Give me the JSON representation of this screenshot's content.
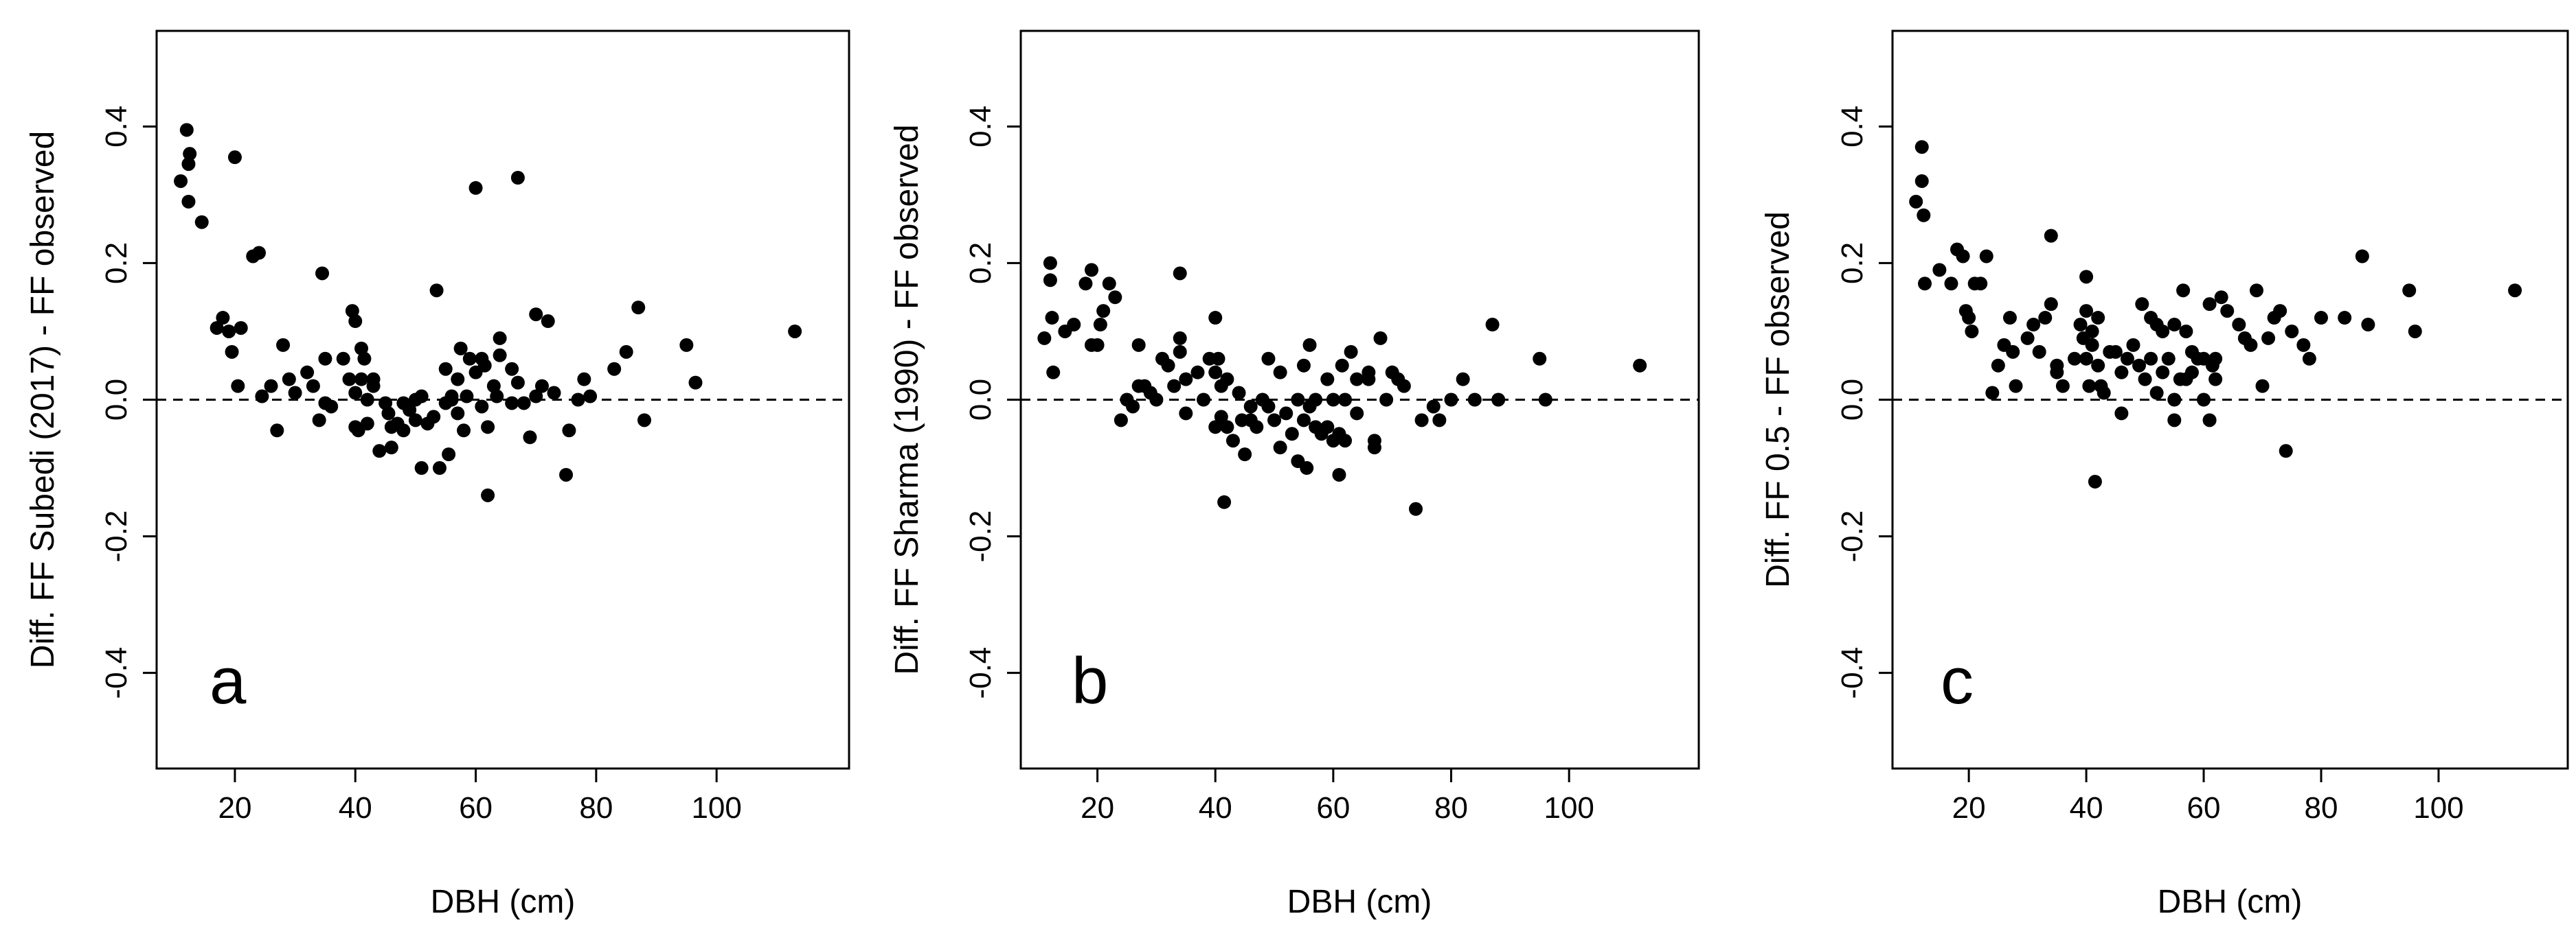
{
  "chart_data": [
    {
      "type": "scatter",
      "panel_letter": "a",
      "xlabel": "DBH (cm)",
      "ylabel": "Diff. FF Subedi (2017) - FF observed",
      "xlim": [
        7,
        122
      ],
      "ylim": [
        -0.54,
        0.54
      ],
      "x_ticks": [
        20,
        40,
        60,
        80,
        100
      ],
      "y_ticks": [
        -0.4,
        -0.2,
        0.0,
        0.2,
        0.4
      ],
      "x_tick_labels": [
        "20",
        "40",
        "60",
        "80",
        "100"
      ],
      "y_tick_labels": [
        "-0.4",
        "-0.2",
        "0.0",
        "0.2",
        "0.4"
      ],
      "reference_line_y": 0.0,
      "points": [
        [
          11,
          0.32
        ],
        [
          12,
          0.395
        ],
        [
          12.3,
          0.345
        ],
        [
          12.5,
          0.36
        ],
        [
          12.3,
          0.29
        ],
        [
          14.5,
          0.26
        ],
        [
          17,
          0.105
        ],
        [
          18,
          0.12
        ],
        [
          19,
          0.1
        ],
        [
          19.5,
          0.07
        ],
        [
          20,
          0.355
        ],
        [
          20.5,
          0.02
        ],
        [
          21,
          0.105
        ],
        [
          23,
          0.21
        ],
        [
          24,
          0.215
        ],
        [
          24.5,
          0.005
        ],
        [
          26,
          0.02
        ],
        [
          27,
          -0.045
        ],
        [
          28,
          0.08
        ],
        [
          29,
          0.03
        ],
        [
          30,
          0.01
        ],
        [
          32,
          0.04
        ],
        [
          33,
          0.02
        ],
        [
          34,
          -0.03
        ],
        [
          34.5,
          0.185
        ],
        [
          35,
          -0.005
        ],
        [
          35,
          0.06
        ],
        [
          36,
          -0.01
        ],
        [
          38,
          0.06
        ],
        [
          39,
          0.03
        ],
        [
          39.5,
          0.13
        ],
        [
          40,
          0.115
        ],
        [
          40,
          0.01
        ],
        [
          40,
          -0.04
        ],
        [
          40.5,
          -0.045
        ],
        [
          41,
          0.075
        ],
        [
          41.5,
          0.06
        ],
        [
          41,
          0.03
        ],
        [
          42,
          0.0
        ],
        [
          42,
          -0.035
        ],
        [
          43,
          0.02
        ],
        [
          43,
          0.03
        ],
        [
          44,
          -0.075
        ],
        [
          45,
          -0.005
        ],
        [
          45.5,
          -0.02
        ],
        [
          46,
          -0.04
        ],
        [
          46,
          -0.07
        ],
        [
          47,
          -0.035
        ],
        [
          48,
          -0.005
        ],
        [
          48,
          -0.045
        ],
        [
          49,
          -0.015
        ],
        [
          50,
          -0.03
        ],
        [
          50,
          0.0
        ],
        [
          51,
          0.005
        ],
        [
          51,
          -0.1
        ],
        [
          52,
          -0.035
        ],
        [
          53,
          -0.025
        ],
        [
          53.5,
          0.16
        ],
        [
          54,
          -0.1
        ],
        [
          55,
          -0.005
        ],
        [
          55,
          0.045
        ],
        [
          55.5,
          -0.08
        ],
        [
          56,
          0.0
        ],
        [
          56,
          0.005
        ],
        [
          57,
          0.03
        ],
        [
          57,
          -0.02
        ],
        [
          57.5,
          0.075
        ],
        [
          58,
          -0.045
        ],
        [
          58.5,
          0.005
        ],
        [
          59,
          0.06
        ],
        [
          60,
          0.31
        ],
        [
          60,
          0.04
        ],
        [
          61,
          0.06
        ],
        [
          61,
          -0.01
        ],
        [
          61.5,
          0.05
        ],
        [
          62,
          -0.14
        ],
        [
          62,
          -0.04
        ],
        [
          63,
          0.02
        ],
        [
          63.5,
          0.005
        ],
        [
          64,
          0.09
        ],
        [
          64,
          0.065
        ],
        [
          66,
          0.045
        ],
        [
          66,
          -0.005
        ],
        [
          67,
          0.325
        ],
        [
          67,
          0.025
        ],
        [
          68,
          -0.005
        ],
        [
          69,
          -0.055
        ],
        [
          70,
          0.125
        ],
        [
          70,
          0.005
        ],
        [
          71,
          0.02
        ],
        [
          72,
          0.115
        ],
        [
          73,
          0.01
        ],
        [
          75,
          -0.11
        ],
        [
          75.5,
          -0.045
        ],
        [
          77,
          0.0
        ],
        [
          78,
          0.03
        ],
        [
          79,
          0.005
        ],
        [
          83,
          0.045
        ],
        [
          85,
          0.07
        ],
        [
          87,
          0.135
        ],
        [
          88,
          -0.03
        ],
        [
          95,
          0.08
        ],
        [
          96.5,
          0.025
        ],
        [
          113,
          0.1
        ]
      ]
    },
    {
      "type": "scatter",
      "panel_letter": "b",
      "xlabel": "DBH (cm)",
      "ylabel": "Diff. FF Sharma (1990) - FF observed",
      "xlim": [
        7,
        122
      ],
      "ylim": [
        -0.54,
        0.54
      ],
      "x_ticks": [
        20,
        40,
        60,
        80,
        100
      ],
      "y_ticks": [
        -0.4,
        -0.2,
        0.0,
        0.2,
        0.4
      ],
      "x_tick_labels": [
        "20",
        "40",
        "60",
        "80",
        "100"
      ],
      "y_tick_labels": [
        "-0.4",
        "-0.2",
        "0.0",
        "0.2",
        "0.4"
      ],
      "reference_line_y": 0.0,
      "points": [
        [
          11,
          0.09
        ],
        [
          12,
          0.2
        ],
        [
          12,
          0.175
        ],
        [
          12.3,
          0.12
        ],
        [
          12.5,
          0.04
        ],
        [
          14.5,
          0.1
        ],
        [
          16,
          0.11
        ],
        [
          18,
          0.17
        ],
        [
          19,
          0.19
        ],
        [
          19,
          0.08
        ],
        [
          20,
          0.08
        ],
        [
          20.5,
          0.11
        ],
        [
          21,
          0.13
        ],
        [
          22,
          0.17
        ],
        [
          23,
          0.15
        ],
        [
          24,
          -0.03
        ],
        [
          25,
          0.0
        ],
        [
          26,
          -0.01
        ],
        [
          27,
          0.02
        ],
        [
          27,
          0.08
        ],
        [
          28,
          0.02
        ],
        [
          29,
          0.01
        ],
        [
          30,
          0.0
        ],
        [
          31,
          0.06
        ],
        [
          32,
          0.05
        ],
        [
          33,
          0.02
        ],
        [
          34,
          0.185
        ],
        [
          34,
          0.07
        ],
        [
          34,
          0.09
        ],
        [
          35,
          0.03
        ],
        [
          35,
          -0.02
        ],
        [
          37,
          0.04
        ],
        [
          38,
          0.0
        ],
        [
          39,
          0.06
        ],
        [
          40,
          0.12
        ],
        [
          40,
          0.04
        ],
        [
          40,
          -0.04
        ],
        [
          40.5,
          0.06
        ],
        [
          41,
          0.02
        ],
        [
          41,
          -0.025
        ],
        [
          41.5,
          -0.15
        ],
        [
          42,
          0.03
        ],
        [
          42,
          -0.04
        ],
        [
          43,
          -0.06
        ],
        [
          44,
          0.01
        ],
        [
          44.5,
          -0.03
        ],
        [
          45,
          -0.08
        ],
        [
          46,
          -0.01
        ],
        [
          46,
          -0.03
        ],
        [
          47,
          -0.04
        ],
        [
          48,
          0.0
        ],
        [
          49,
          0.06
        ],
        [
          49,
          -0.01
        ],
        [
          50,
          -0.03
        ],
        [
          51,
          0.04
        ],
        [
          51,
          -0.07
        ],
        [
          52,
          -0.02
        ],
        [
          53,
          -0.05
        ],
        [
          54,
          -0.09
        ],
        [
          54,
          0.0
        ],
        [
          55,
          -0.03
        ],
        [
          55,
          0.05
        ],
        [
          55.5,
          -0.1
        ],
        [
          56,
          -0.01
        ],
        [
          56,
          0.08
        ],
        [
          57,
          -0.04
        ],
        [
          57,
          0.0
        ],
        [
          58,
          -0.05
        ],
        [
          59,
          0.03
        ],
        [
          59,
          -0.04
        ],
        [
          60,
          -0.06
        ],
        [
          60,
          0.0
        ],
        [
          61,
          -0.05
        ],
        [
          61,
          -0.11
        ],
        [
          61.5,
          0.05
        ],
        [
          62,
          0.0
        ],
        [
          62,
          -0.06
        ],
        [
          63,
          0.07
        ],
        [
          64,
          0.03
        ],
        [
          64,
          -0.02
        ],
        [
          66,
          0.04
        ],
        [
          66,
          0.03
        ],
        [
          67,
          -0.06
        ],
        [
          67,
          -0.07
        ],
        [
          68,
          0.09
        ],
        [
          69,
          0.0
        ],
        [
          70,
          0.04
        ],
        [
          71,
          0.03
        ],
        [
          72,
          0.02
        ],
        [
          74,
          -0.16
        ],
        [
          75,
          -0.03
        ],
        [
          77,
          -0.01
        ],
        [
          78,
          -0.03
        ],
        [
          80,
          0.0
        ],
        [
          82,
          0.03
        ],
        [
          84,
          0.0
        ],
        [
          87,
          0.11
        ],
        [
          88,
          0.0
        ],
        [
          95,
          0.06
        ],
        [
          96,
          0.0
        ],
        [
          112,
          0.05
        ]
      ]
    },
    {
      "type": "scatter",
      "panel_letter": "c",
      "xlabel": "DBH (cm)",
      "ylabel": "Diff. FF 0.5 - FF observed",
      "xlim": [
        7,
        122
      ],
      "ylim": [
        -0.54,
        0.54
      ],
      "x_ticks": [
        20,
        40,
        60,
        80,
        100
      ],
      "y_ticks": [
        -0.4,
        -0.2,
        0.0,
        0.2,
        0.4
      ],
      "x_tick_labels": [
        "20",
        "40",
        "60",
        "80",
        "100"
      ],
      "y_tick_labels": [
        "-0.4",
        "-0.2",
        "0.0",
        "0.2",
        "0.4"
      ],
      "reference_line_y": 0.0,
      "points": [
        [
          11,
          0.29
        ],
        [
          12,
          0.37
        ],
        [
          12,
          0.32
        ],
        [
          12.3,
          0.27
        ],
        [
          12.5,
          0.17
        ],
        [
          15,
          0.19
        ],
        [
          17,
          0.17
        ],
        [
          18,
          0.22
        ],
        [
          19,
          0.21
        ],
        [
          19.5,
          0.13
        ],
        [
          20,
          0.12
        ],
        [
          20.5,
          0.1
        ],
        [
          21,
          0.17
        ],
        [
          22,
          0.17
        ],
        [
          23,
          0.21
        ],
        [
          24,
          0.01
        ],
        [
          25,
          0.05
        ],
        [
          26,
          0.08
        ],
        [
          27,
          0.12
        ],
        [
          27.5,
          0.07
        ],
        [
          28,
          0.02
        ],
        [
          30,
          0.09
        ],
        [
          31,
          0.11
        ],
        [
          32,
          0.07
        ],
        [
          33,
          0.12
        ],
        [
          34,
          0.24
        ],
        [
          34,
          0.14
        ],
        [
          35,
          0.05
        ],
        [
          35,
          0.04
        ],
        [
          36,
          0.02
        ],
        [
          38,
          0.06
        ],
        [
          39,
          0.11
        ],
        [
          39.5,
          0.09
        ],
        [
          40,
          0.18
        ],
        [
          40,
          0.13
        ],
        [
          40,
          0.06
        ],
        [
          40.5,
          0.02
        ],
        [
          41,
          0.1
        ],
        [
          41,
          0.08
        ],
        [
          41.5,
          -0.12
        ],
        [
          42,
          0.12
        ],
        [
          42,
          0.05
        ],
        [
          42.5,
          0.02
        ],
        [
          43,
          0.01
        ],
        [
          44,
          0.07
        ],
        [
          45,
          0.07
        ],
        [
          46,
          0.04
        ],
        [
          46,
          -0.02
        ],
        [
          47,
          0.06
        ],
        [
          48,
          0.08
        ],
        [
          49,
          0.05
        ],
        [
          49.5,
          0.14
        ],
        [
          50,
          0.03
        ],
        [
          51,
          0.12
        ],
        [
          51,
          0.06
        ],
        [
          52,
          0.11
        ],
        [
          52,
          0.01
        ],
        [
          53,
          0.04
        ],
        [
          53,
          0.1
        ],
        [
          54,
          0.06
        ],
        [
          55,
          0.11
        ],
        [
          55,
          0.0
        ],
        [
          55,
          -0.03
        ],
        [
          56,
          0.03
        ],
        [
          56.5,
          0.16
        ],
        [
          57,
          0.1
        ],
        [
          57,
          0.03
        ],
        [
          58,
          0.07
        ],
        [
          58,
          0.04
        ],
        [
          59,
          0.06
        ],
        [
          60,
          0.0
        ],
        [
          60,
          0.06
        ],
        [
          61,
          0.14
        ],
        [
          61,
          -0.03
        ],
        [
          61.5,
          0.05
        ],
        [
          62,
          0.06
        ],
        [
          62,
          0.03
        ],
        [
          63,
          0.15
        ],
        [
          64,
          0.13
        ],
        [
          66,
          0.11
        ],
        [
          67,
          0.09
        ],
        [
          68,
          0.08
        ],
        [
          69,
          0.16
        ],
        [
          70,
          0.02
        ],
        [
          71,
          0.09
        ],
        [
          72,
          0.12
        ],
        [
          73,
          0.13
        ],
        [
          74,
          -0.075
        ],
        [
          75,
          0.1
        ],
        [
          77,
          0.08
        ],
        [
          78,
          0.06
        ],
        [
          80,
          0.12
        ],
        [
          84,
          0.12
        ],
        [
          87,
          0.21
        ],
        [
          88,
          0.11
        ],
        [
          95,
          0.16
        ],
        [
          96,
          0.1
        ],
        [
          113,
          0.16
        ]
      ]
    }
  ]
}
